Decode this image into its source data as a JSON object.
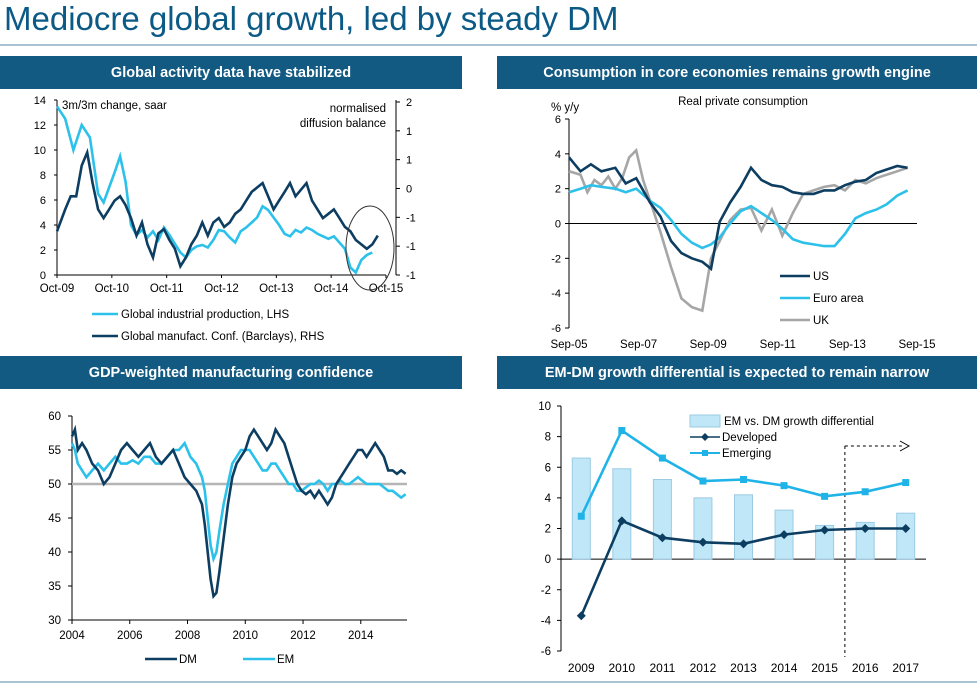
{
  "page": {
    "title": "Mediocre global growth, led by steady DM"
  },
  "colors": {
    "header": "#135a83",
    "dark": "#0d3e61",
    "light": "#2cc1ea",
    "grey": "#a6a6a6",
    "bar_fill": "#bfe7f7",
    "bar_stroke": "#9bcbe3",
    "emerging": "#1fb3e8",
    "developed": "#0d3e61"
  },
  "chart_data": [
    {
      "id": "global-activity",
      "type": "line",
      "title": "Global activity data have stabilized",
      "left_axis_note": "3m/3m change, saar",
      "right_axis_note": [
        "normalised",
        "diffusion balance"
      ],
      "x_ticks": [
        "Oct-09",
        "Oct-10",
        "Oct-11",
        "Oct-12",
        "Oct-13",
        "Oct-14",
        "Oct-15"
      ],
      "y_left_ticks": [
        "0",
        "2",
        "4",
        "6",
        "8",
        "10",
        "12",
        "14"
      ],
      "y_right_ticks": [
        "2",
        "1",
        "1",
        "0",
        "-1",
        "-1",
        "-1"
      ],
      "ylim_left": [
        0,
        14
      ],
      "ylim_right": [
        -2,
        2
      ],
      "legend": [
        "Global industrial production, LHS",
        "Global manufact. Conf. (Barclays), RHS"
      ],
      "series": [
        {
          "name": "Global industrial production, LHS",
          "color": "#2cc1ea",
          "axis": "left",
          "x": [
            2009.75,
            2009.9,
            2010.05,
            2010.2,
            2010.35,
            2010.5,
            2010.6,
            2010.7,
            2010.8,
            2010.9,
            2011.0,
            2011.1,
            2011.2,
            2011.3,
            2011.4,
            2011.5,
            2011.6,
            2011.7,
            2011.8,
            2011.9,
            2012.0,
            2012.1,
            2012.2,
            2012.3,
            2012.4,
            2012.5,
            2012.6,
            2012.7,
            2012.8,
            2012.9,
            2013.0,
            2013.1,
            2013.2,
            2013.3,
            2013.4,
            2013.5,
            2013.6,
            2013.7,
            2013.8,
            2013.9,
            2014.0,
            2014.1,
            2014.2,
            2014.3,
            2014.4,
            2014.5,
            2014.6,
            2014.7,
            2014.8,
            2014.9,
            2015.0,
            2015.1,
            2015.2,
            2015.3,
            2015.4,
            2015.5
          ],
          "y": [
            13.5,
            12.5,
            10,
            12,
            11,
            6.5,
            5.8,
            7,
            8.2,
            9.5,
            7.5,
            4,
            3.2,
            3.6,
            3,
            3.5,
            2.8,
            3.8,
            3.2,
            2.5,
            1.8,
            1.4,
            2,
            2.3,
            2.4,
            2.2,
            2.8,
            3.6,
            3.5,
            3,
            2.6,
            3.5,
            3.8,
            4.2,
            4.6,
            5.5,
            5.2,
            4.6,
            4,
            3.3,
            3.1,
            3.6,
            3.4,
            3.8,
            3.6,
            3.3,
            3.1,
            2.9,
            3.1,
            2.6,
            2.1,
            0.6,
            0.2,
            1.2,
            1.6,
            1.8
          ]
        },
        {
          "name": "Global manufact. Conf. (Barclays), RHS",
          "color": "#0d3e61",
          "axis": "right",
          "x": [
            2009.75,
            2009.9,
            2010.0,
            2010.1,
            2010.2,
            2010.3,
            2010.4,
            2010.5,
            2010.6,
            2010.7,
            2010.8,
            2010.9,
            2011.0,
            2011.1,
            2011.2,
            2011.3,
            2011.4,
            2011.5,
            2011.6,
            2011.7,
            2011.8,
            2011.9,
            2012.0,
            2012.1,
            2012.2,
            2012.3,
            2012.4,
            2012.5,
            2012.6,
            2012.7,
            2012.8,
            2012.9,
            2013.0,
            2013.1,
            2013.2,
            2013.3,
            2013.4,
            2013.5,
            2013.6,
            2013.7,
            2013.8,
            2013.9,
            2014.0,
            2014.1,
            2014.2,
            2014.3,
            2014.4,
            2014.5,
            2014.6,
            2014.7,
            2014.8,
            2014.9,
            2015.0,
            2015.1,
            2015.2,
            2015.3,
            2015.4,
            2015.5,
            2015.6
          ],
          "y": [
            -1.0,
            -0.5,
            -0.2,
            -0.2,
            0.5,
            0.8,
            0.1,
            -0.5,
            -0.7,
            -0.5,
            -0.3,
            -0.2,
            -0.4,
            -0.7,
            -1.1,
            -0.8,
            -1.3,
            -1.6,
            -1.05,
            -0.95,
            -1.2,
            -1.4,
            -1.8,
            -1.6,
            -1.3,
            -1.1,
            -0.8,
            -1.1,
            -0.8,
            -0.7,
            -0.9,
            -0.8,
            -0.6,
            -0.5,
            -0.3,
            -0.1,
            0.0,
            0.1,
            -0.2,
            -0.5,
            -0.3,
            -0.1,
            0.1,
            -0.2,
            -0.05,
            0.1,
            -0.3,
            -0.5,
            -0.7,
            -0.6,
            -0.5,
            -0.7,
            -0.9,
            -1.0,
            -1.2,
            -1.3,
            -1.4,
            -1.3,
            -1.1
          ]
        }
      ]
    },
    {
      "id": "consumption",
      "type": "line",
      "title": "Consumption in core economies remains growth engine",
      "ylabel": "% y/y",
      "subtitle": "Real private consumption",
      "x_ticks": [
        "Sep-05",
        "Sep-07",
        "Sep-09",
        "Sep-11",
        "Sep-13",
        "Sep-15"
      ],
      "y_ticks": [
        "-6",
        "-4",
        "-2",
        "0",
        "2",
        "4",
        "6"
      ],
      "ylim": [
        -6,
        6
      ],
      "xlim": [
        2005.67,
        2015.67
      ],
      "legend": [
        "US",
        "Euro area",
        "UK"
      ],
      "series": [
        {
          "name": "US",
          "color": "#0d3e61",
          "x": [
            2005.67,
            2006.0,
            2006.3,
            2006.6,
            2007.0,
            2007.3,
            2007.6,
            2008.0,
            2008.3,
            2008.6,
            2008.9,
            2009.2,
            2009.5,
            2009.75,
            2010.0,
            2010.3,
            2010.6,
            2010.9,
            2011.2,
            2011.5,
            2011.8,
            2012.1,
            2012.4,
            2012.7,
            2013.0,
            2013.3,
            2013.6,
            2013.9,
            2014.2,
            2014.5,
            2014.8,
            2015.1,
            2015.4
          ],
          "y": [
            3.8,
            3.0,
            3.4,
            3.0,
            3.2,
            2.3,
            2.6,
            1.2,
            0.4,
            -1.0,
            -1.7,
            -2.0,
            -2.2,
            -2.6,
            0.1,
            1.2,
            2.1,
            3.2,
            2.5,
            2.2,
            2.1,
            1.8,
            1.7,
            1.7,
            1.9,
            1.9,
            2.2,
            2.4,
            2.5,
            2.9,
            3.1,
            3.3,
            3.2
          ]
        },
        {
          "name": "Euro area",
          "color": "#2cc1ea",
          "x": [
            2005.67,
            2006.0,
            2006.3,
            2006.6,
            2007.0,
            2007.3,
            2007.6,
            2008.0,
            2008.3,
            2008.6,
            2008.9,
            2009.2,
            2009.5,
            2009.75,
            2010.0,
            2010.3,
            2010.6,
            2010.9,
            2011.2,
            2011.5,
            2011.8,
            2012.1,
            2012.4,
            2012.7,
            2013.0,
            2013.3,
            2013.6,
            2013.9,
            2014.2,
            2014.5,
            2014.8,
            2015.1,
            2015.4
          ],
          "y": [
            1.8,
            2.0,
            2.2,
            2.1,
            2.0,
            1.8,
            2.0,
            1.3,
            0.9,
            0.2,
            -0.6,
            -1.1,
            -1.4,
            -1.2,
            -0.8,
            0.0,
            0.7,
            1.0,
            0.6,
            0.2,
            -0.3,
            -0.9,
            -1.1,
            -1.2,
            -1.3,
            -1.3,
            -0.6,
            0.3,
            0.6,
            0.8,
            1.1,
            1.6,
            1.9
          ]
        },
        {
          "name": "UK",
          "color": "#a6a6a6",
          "x": [
            2005.67,
            2006.0,
            2006.2,
            2006.4,
            2006.6,
            2006.8,
            2007.0,
            2007.2,
            2007.4,
            2007.6,
            2007.8,
            2008.0,
            2008.3,
            2008.6,
            2008.9,
            2009.2,
            2009.5,
            2009.75,
            2010.0,
            2010.3,
            2010.6,
            2010.9,
            2011.2,
            2011.5,
            2011.8,
            2012.1,
            2012.4,
            2012.7,
            2013.0,
            2013.3,
            2013.6,
            2013.9,
            2014.2,
            2014.5,
            2014.8,
            2015.1,
            2015.4
          ],
          "y": [
            3.0,
            2.8,
            1.8,
            2.5,
            2.2,
            2.7,
            2.0,
            2.6,
            3.8,
            4.2,
            2.5,
            1.3,
            -0.5,
            -2.5,
            -4.3,
            -4.8,
            -5.0,
            -2.0,
            -1.0,
            0.2,
            0.8,
            0.9,
            -0.4,
            0.8,
            -0.7,
            0.6,
            1.7,
            1.9,
            2.1,
            2.2,
            1.9,
            2.5,
            2.3,
            2.6,
            2.8,
            3.0,
            3.2
          ]
        }
      ]
    },
    {
      "id": "manufacturing-confidence",
      "type": "line",
      "title": "GDP-weighted manufacturing confidence",
      "x_ticks": [
        "2004",
        "2006",
        "2008",
        "2010",
        "2012",
        "2014"
      ],
      "y_ticks": [
        "30",
        "35",
        "40",
        "45",
        "50",
        "55",
        "60"
      ],
      "ylim": [
        30,
        60
      ],
      "xlim": [
        2004,
        2015.6
      ],
      "reference_line": 50,
      "legend": [
        "DM",
        "EM"
      ],
      "series": [
        {
          "name": "DM",
          "color": "#0d3e61",
          "x": [
            2004.0,
            2004.1,
            2004.2,
            2004.35,
            2004.5,
            2004.7,
            2004.9,
            2005.1,
            2005.3,
            2005.5,
            2005.7,
            2005.9,
            2006.1,
            2006.3,
            2006.5,
            2006.7,
            2006.9,
            2007.1,
            2007.3,
            2007.5,
            2007.7,
            2007.9,
            2008.1,
            2008.3,
            2008.5,
            2008.6,
            2008.7,
            2008.8,
            2008.9,
            2009.0,
            2009.1,
            2009.25,
            2009.4,
            2009.55,
            2009.7,
            2009.85,
            2010.0,
            2010.15,
            2010.3,
            2010.45,
            2010.6,
            2010.75,
            2010.9,
            2011.05,
            2011.2,
            2011.35,
            2011.5,
            2011.65,
            2011.8,
            2011.95,
            2012.1,
            2012.25,
            2012.4,
            2012.55,
            2012.7,
            2012.85,
            2013.0,
            2013.15,
            2013.3,
            2013.45,
            2013.6,
            2013.75,
            2013.9,
            2014.05,
            2014.2,
            2014.35,
            2014.5,
            2014.65,
            2014.8,
            2014.95,
            2015.1,
            2015.25,
            2015.4,
            2015.55
          ],
          "y": [
            57,
            58,
            55,
            56,
            55,
            53,
            52,
            50,
            51,
            53,
            55,
            56,
            55,
            54,
            55,
            56,
            54,
            53,
            54,
            55,
            53,
            51,
            50,
            49,
            47,
            44,
            40,
            36,
            33.5,
            34,
            37,
            42,
            47,
            51,
            53,
            54,
            55,
            57,
            58,
            57,
            56,
            55,
            56,
            58,
            57,
            56,
            54,
            52,
            50,
            49,
            48.5,
            49,
            48,
            49,
            48,
            47,
            48,
            50,
            51,
            52,
            53,
            54,
            55,
            55,
            54,
            55,
            56,
            55,
            54,
            52,
            52,
            51.5,
            52,
            51.5
          ]
        },
        {
          "name": "EM",
          "color": "#2cc1ea",
          "x": [
            2004.0,
            2004.1,
            2004.2,
            2004.35,
            2004.5,
            2004.7,
            2004.9,
            2005.1,
            2005.3,
            2005.5,
            2005.7,
            2005.9,
            2006.1,
            2006.3,
            2006.5,
            2006.7,
            2006.9,
            2007.1,
            2007.3,
            2007.5,
            2007.7,
            2007.9,
            2008.1,
            2008.3,
            2008.5,
            2008.6,
            2008.7,
            2008.8,
            2008.9,
            2009.0,
            2009.1,
            2009.25,
            2009.4,
            2009.55,
            2009.7,
            2009.85,
            2010.0,
            2010.15,
            2010.3,
            2010.45,
            2010.6,
            2010.75,
            2010.9,
            2011.05,
            2011.2,
            2011.35,
            2011.5,
            2011.65,
            2011.8,
            2011.95,
            2012.1,
            2012.25,
            2012.4,
            2012.55,
            2012.7,
            2012.85,
            2013.0,
            2013.15,
            2013.3,
            2013.45,
            2013.6,
            2013.75,
            2013.9,
            2014.05,
            2014.2,
            2014.35,
            2014.5,
            2014.65,
            2014.8,
            2014.95,
            2015.1,
            2015.25,
            2015.4,
            2015.55
          ],
          "y": [
            56,
            55,
            53,
            52,
            51,
            52,
            53,
            52,
            53,
            54,
            53,
            53,
            53.5,
            53,
            54,
            54,
            53,
            53,
            54,
            55,
            55,
            56,
            54,
            53,
            51,
            49,
            45,
            41,
            39,
            40,
            43,
            47,
            50,
            53,
            54,
            55,
            55,
            55,
            54,
            53,
            52,
            52,
            53,
            53,
            52,
            51,
            50,
            50,
            49,
            49,
            49.5,
            50,
            50,
            50.5,
            50,
            49,
            50,
            50,
            50.5,
            50,
            50,
            50.5,
            51,
            50.5,
            50,
            50,
            50,
            50,
            49.5,
            49,
            49,
            48.5,
            48,
            48.5
          ]
        }
      ]
    },
    {
      "id": "em-dm-differential",
      "type": "bar+line",
      "title": "EM-DM growth differential is expected to remain narrow",
      "categories": [
        "2009",
        "2010",
        "2011",
        "2012",
        "2013",
        "2014",
        "2015",
        "2016",
        "2017"
      ],
      "y_ticks": [
        "-6",
        "-4",
        "-2",
        "0",
        "2",
        "4",
        "6",
        "8",
        "10"
      ],
      "ylim": [
        -6,
        10
      ],
      "forecast_from": "2016",
      "legend": [
        "EM vs. DM growth differential",
        "Developed",
        "Emerging"
      ],
      "series": [
        {
          "name": "EM vs. DM growth differential",
          "kind": "bar",
          "values": [
            6.6,
            5.9,
            5.2,
            4.0,
            4.2,
            3.2,
            2.2,
            2.4,
            3.0
          ]
        },
        {
          "name": "Developed",
          "kind": "line",
          "marker": "diamond",
          "values": [
            -3.7,
            2.5,
            1.4,
            1.1,
            1.0,
            1.6,
            1.9,
            2.0,
            2.0
          ]
        },
        {
          "name": "Emerging",
          "kind": "line",
          "marker": "square",
          "values": [
            2.8,
            8.4,
            6.6,
            5.1,
            5.2,
            4.8,
            4.1,
            4.4,
            5.0
          ]
        }
      ]
    }
  ]
}
